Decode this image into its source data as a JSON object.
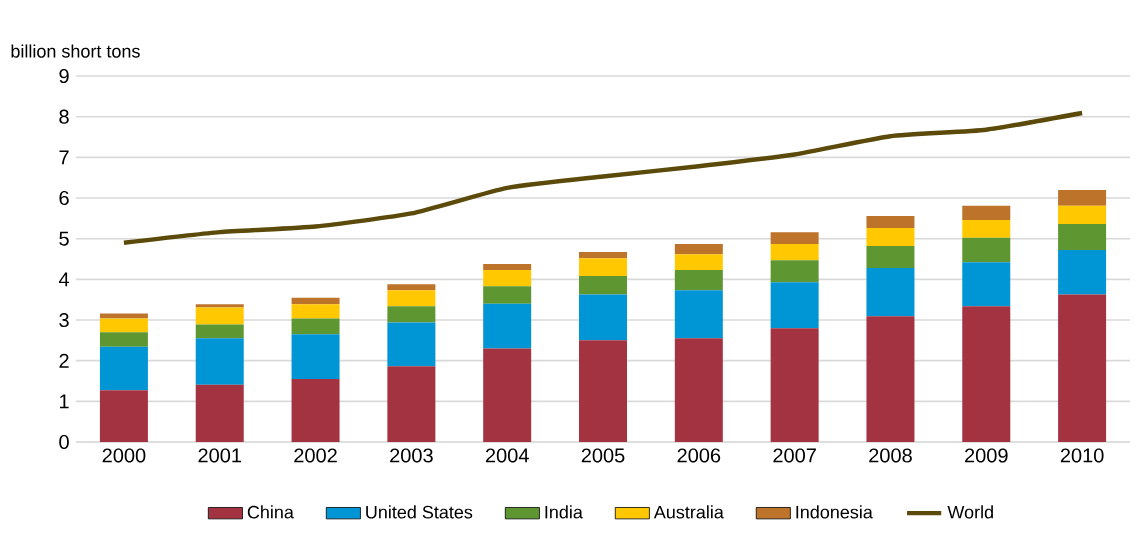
{
  "chart_data": {
    "type": "bar",
    "stacked": true,
    "ylabel": "billion short tons",
    "categories": [
      "2000",
      "2001",
      "2002",
      "2003",
      "2004",
      "2005",
      "2006",
      "2007",
      "2008",
      "2009",
      "2010"
    ],
    "series": [
      {
        "name": "China",
        "color": "#a33340",
        "values": [
          1.27,
          1.41,
          1.55,
          1.86,
          2.3,
          2.5,
          2.55,
          2.8,
          3.09,
          3.34,
          3.63
        ]
      },
      {
        "name": "United States",
        "color": "#0096d6",
        "values": [
          1.07,
          1.14,
          1.1,
          1.08,
          1.1,
          1.13,
          1.18,
          1.13,
          1.19,
          1.08,
          1.09
        ]
      },
      {
        "name": "India",
        "color": "#5e9732",
        "values": [
          0.36,
          0.34,
          0.39,
          0.4,
          0.43,
          0.45,
          0.5,
          0.54,
          0.54,
          0.6,
          0.64
        ]
      },
      {
        "name": "Australia",
        "color": "#ffc800",
        "values": [
          0.34,
          0.42,
          0.35,
          0.39,
          0.4,
          0.44,
          0.39,
          0.4,
          0.44,
          0.44,
          0.45
        ]
      },
      {
        "name": "Indonesia",
        "color": "#bd732a",
        "values": [
          0.12,
          0.08,
          0.16,
          0.15,
          0.15,
          0.15,
          0.25,
          0.29,
          0.3,
          0.35,
          0.39
        ]
      },
      {
        "name": "World",
        "type": "line",
        "color": "#5c4a0a",
        "values": [
          4.9,
          5.16,
          5.3,
          5.62,
          6.25,
          6.53,
          6.78,
          7.07,
          7.52,
          7.68,
          8.09
        ]
      }
    ],
    "ylim": [
      0,
      9
    ],
    "yticks": [
      0,
      1,
      2,
      3,
      4,
      5,
      6,
      7,
      8,
      9
    ],
    "grid": "y",
    "legend": "bottom"
  }
}
